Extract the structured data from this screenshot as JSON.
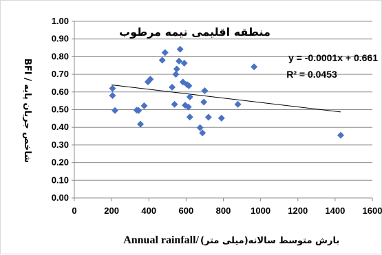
{
  "chart_data": {
    "type": "scatter",
    "title": "منطقه اقلیمی نیمه مرطوب",
    "xlabel_en": "Annual rainfall/",
    "xlabel_fa": "بارش متوسط سالانه(میلی متر)",
    "ylabel": "شاخص جریان پایه / BFI",
    "xlim": [
      0,
      1600
    ],
    "ylim": [
      0.0,
      1.0
    ],
    "x_ticks": [
      "0",
      "200",
      "400",
      "600",
      "800",
      "1000",
      "1200",
      "1400",
      "1600"
    ],
    "y_ticks": [
      "0.00",
      "0.10",
      "0.20",
      "0.30",
      "0.40",
      "0.50",
      "0.60",
      "0.70",
      "0.80",
      "0.90",
      "1.00"
    ],
    "grid": "horizontal",
    "marker": "diamond",
    "marker_color": "#4a72c4",
    "trendline": {
      "equation": "y = -0.0001x + 0.661",
      "r2": "R² = 0.0453",
      "x": [
        200,
        1430
      ],
      "y": [
        0.64,
        0.487
      ]
    },
    "points": [
      {
        "x": 205,
        "y": 0.62
      },
      {
        "x": 205,
        "y": 0.58
      },
      {
        "x": 218,
        "y": 0.495
      },
      {
        "x": 335,
        "y": 0.497
      },
      {
        "x": 345,
        "y": 0.495
      },
      {
        "x": 355,
        "y": 0.418
      },
      {
        "x": 375,
        "y": 0.522
      },
      {
        "x": 395,
        "y": 0.657
      },
      {
        "x": 408,
        "y": 0.672
      },
      {
        "x": 472,
        "y": 0.78
      },
      {
        "x": 487,
        "y": 0.823
      },
      {
        "x": 525,
        "y": 0.627
      },
      {
        "x": 538,
        "y": 0.53
      },
      {
        "x": 545,
        "y": 0.7
      },
      {
        "x": 550,
        "y": 0.73
      },
      {
        "x": 562,
        "y": 0.775
      },
      {
        "x": 568,
        "y": 0.842
      },
      {
        "x": 583,
        "y": 0.656
      },
      {
        "x": 590,
        "y": 0.763
      },
      {
        "x": 595,
        "y": 0.525
      },
      {
        "x": 605,
        "y": 0.642
      },
      {
        "x": 612,
        "y": 0.515
      },
      {
        "x": 615,
        "y": 0.635
      },
      {
        "x": 620,
        "y": 0.572
      },
      {
        "x": 620,
        "y": 0.458
      },
      {
        "x": 675,
        "y": 0.398
      },
      {
        "x": 688,
        "y": 0.368
      },
      {
        "x": 695,
        "y": 0.543
      },
      {
        "x": 700,
        "y": 0.607
      },
      {
        "x": 720,
        "y": 0.457
      },
      {
        "x": 790,
        "y": 0.452
      },
      {
        "x": 878,
        "y": 0.53
      },
      {
        "x": 965,
        "y": 0.742
      },
      {
        "x": 1430,
        "y": 0.355
      }
    ]
  }
}
